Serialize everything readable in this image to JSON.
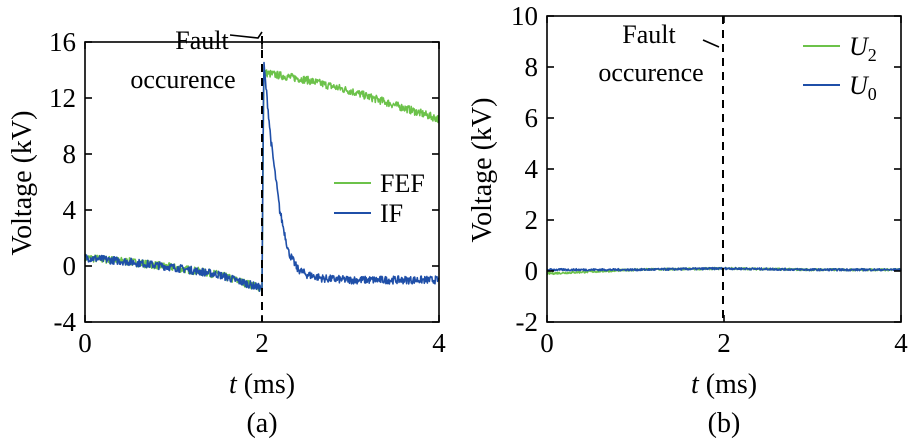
{
  "chart_data": [
    {
      "panel": "(a)",
      "type": "line",
      "xlabel_var": "t",
      "xlabel_unit": " (ms)",
      "ylabel": "Voltage (kV)",
      "xlim": [
        0,
        4
      ],
      "ylim": [
        -4,
        16
      ],
      "xticks": [
        "0",
        "2",
        "4"
      ],
      "yticks": [
        "-4",
        "0",
        "4",
        "8",
        "12",
        "16"
      ],
      "annotation": [
        "Fault",
        "occurence"
      ],
      "fault_x": 2,
      "legend_position": "right-middle",
      "series": [
        {
          "name": "FEF",
          "color": "#6cc24a",
          "x": [
            0,
            0.5,
            1,
            1.5,
            1.95,
            2.0,
            2.02,
            2.5,
            3,
            3.5,
            4
          ],
          "y": [
            0.6,
            0.3,
            -0.1,
            -0.6,
            -1.5,
            -1.6,
            13.8,
            13.3,
            12.5,
            11.5,
            10.5
          ]
        },
        {
          "name": "IF",
          "color": "#1f4fa8",
          "x": [
            0,
            0.5,
            1,
            1.5,
            1.95,
            2.0,
            2.02,
            2.1,
            2.2,
            2.3,
            2.4,
            2.5,
            2.7,
            3,
            3.5,
            4
          ],
          "y": [
            0.6,
            0.3,
            -0.1,
            -0.6,
            -1.5,
            -1.6,
            14.5,
            9.0,
            4.0,
            1.0,
            -0.2,
            -0.6,
            -0.9,
            -1.0,
            -1.0,
            -1.0
          ]
        }
      ]
    },
    {
      "panel": "(b)",
      "type": "line",
      "xlabel_var": "t",
      "xlabel_unit": " (ms)",
      "ylabel": "Voltage (kV)",
      "xlim": [
        0,
        4
      ],
      "ylim": [
        -2,
        10
      ],
      "xticks": [
        "0",
        "2",
        "4"
      ],
      "yticks": [
        "-2",
        "0",
        "2",
        "4",
        "6",
        "8",
        "10"
      ],
      "annotation": [
        "Fault",
        "occurence"
      ],
      "fault_x": 2,
      "legend_position": "top-right",
      "series": [
        {
          "name": "U",
          "subscript": "2",
          "color": "#6cc24a",
          "x": [
            0,
            1,
            2,
            3,
            4
          ],
          "y": [
            -0.1,
            0.05,
            0.1,
            0.05,
            0.05
          ]
        },
        {
          "name": "U",
          "subscript": "0",
          "color": "#1f4fa8",
          "x": [
            0,
            1,
            2,
            3,
            4
          ],
          "y": [
            0.05,
            0.05,
            0.1,
            0.05,
            0.05
          ]
        }
      ]
    }
  ]
}
